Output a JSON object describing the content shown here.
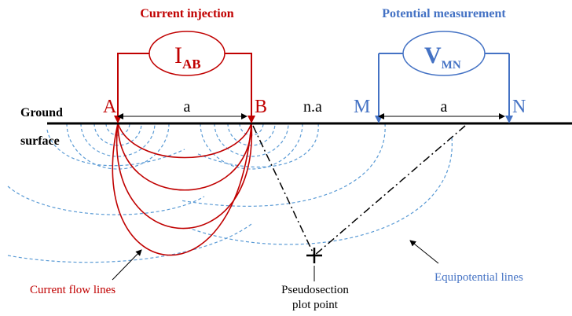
{
  "header": {
    "current": "Current injection",
    "potential": "Potential measurement"
  },
  "instruments": [
    {
      "symbol": "I",
      "subscript": "AB"
    },
    {
      "symbol": "V",
      "subscript": "MN"
    }
  ],
  "ground": [
    "Ground",
    "surface"
  ],
  "electrodes": [
    "A",
    "B",
    "M",
    "N"
  ],
  "spacings": [
    "a",
    "n.a",
    "a"
  ],
  "annotations": {
    "current_flow": "Current flow lines",
    "pseudosection": [
      "Pseudosection",
      "plot point"
    ],
    "equipotential": "Equipotential lines"
  }
}
